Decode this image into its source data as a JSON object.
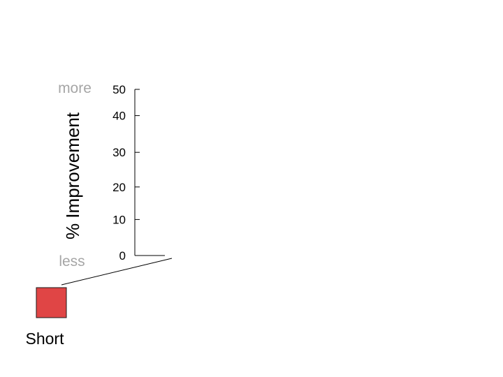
{
  "chart_data": {
    "type": "bar",
    "title": "",
    "ylabel": "% Improvement",
    "xlabel": "",
    "ylim": [
      0,
      50
    ],
    "yticks": [
      0,
      10,
      20,
      30,
      40,
      50
    ],
    "ytick_labels": [
      "0",
      "10",
      "20",
      "30",
      "40",
      "50"
    ],
    "axis_hints": {
      "top": "more",
      "bottom": "less"
    },
    "categories": [],
    "series": [
      {
        "name": "Short",
        "color": "#e04545",
        "values": []
      }
    ],
    "legend_placement": "bottom-left",
    "grid": false
  }
}
